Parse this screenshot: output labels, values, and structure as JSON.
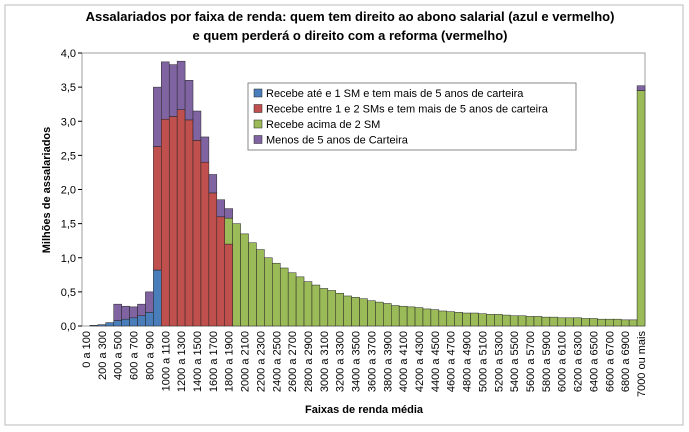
{
  "chart_data": {
    "type": "stacked-bar",
    "title": [
      "Assalariados por faixa de renda: quem tem direito ao abono salarial (azul e vermelho)",
      "e quem perderá o direito com a reforma (vermelho)"
    ],
    "y_label": "Milhões de assalariados",
    "x_label": "Faixas de renda média",
    "categories": [
      "0 a 100",
      null,
      "200 a 300",
      null,
      "400 a 500",
      null,
      "600 a 700",
      null,
      "800 a 900",
      null,
      "1000 a 1100",
      null,
      "1200 a 1300",
      null,
      "1400 a 1500",
      null,
      "1600 a 1700",
      null,
      "1800 a 1900",
      null,
      "2000 a 2100",
      null,
      "2200 a 2300",
      null,
      "2400 a 2500",
      null,
      "2600 a 2700",
      null,
      "2800 a 2900",
      null,
      "3000 a 3100",
      null,
      "3200 a 3300",
      null,
      "3400 a 3500",
      null,
      "3600 a 3700",
      null,
      "3800 a 3900",
      null,
      "4000 a 4100",
      null,
      "4200 a 4300",
      null,
      "4400 a 4500",
      null,
      "4600 a 4700",
      null,
      "4800 a 4900",
      null,
      "5000 a 5100",
      null,
      "5200 a 5300",
      null,
      "5400 a 5500",
      null,
      "5600 a 5700",
      null,
      "5800 a 5900",
      null,
      "6000 a 6100",
      null,
      "6200 a 6300",
      null,
      "6400 a 6500",
      null,
      "6600 a 6700",
      null,
      "6800 a 6900",
      null,
      "7000 ou mais"
    ],
    "series": [
      {
        "name": "Recebe até e 1 SM e tem mais de 5 anos de carteira",
        "color": "#4a7ebb",
        "values": [
          0,
          0.01,
          0.02,
          0.05,
          0.08,
          0.1,
          0.12,
          0.15,
          0.2,
          0.82,
          0,
          0,
          0,
          0,
          0,
          0,
          0,
          0,
          0,
          0,
          0,
          0,
          0,
          0,
          0,
          0,
          0,
          0,
          0,
          0,
          0,
          0,
          0,
          0,
          0,
          0,
          0,
          0,
          0,
          0,
          0,
          0,
          0,
          0,
          0,
          0,
          0,
          0,
          0,
          0,
          0,
          0,
          0,
          0,
          0,
          0,
          0,
          0,
          0,
          0,
          0,
          0,
          0,
          0,
          0,
          0,
          0,
          0,
          0,
          0,
          0
        ]
      },
      {
        "name": "Recebe entre 1 e 2 SMs e tem mais de 5 anos de carteira",
        "color": "#c0504d",
        "values": [
          0,
          0,
          0,
          0,
          0,
          0,
          0,
          0,
          0,
          1.81,
          3.03,
          3.07,
          3.17,
          3.02,
          2.72,
          2.4,
          1.95,
          1.6,
          1.2,
          0,
          0,
          0,
          0,
          0,
          0,
          0,
          0,
          0,
          0,
          0,
          0,
          0,
          0,
          0,
          0,
          0,
          0,
          0,
          0,
          0,
          0,
          0,
          0,
          0,
          0,
          0,
          0,
          0,
          0,
          0,
          0,
          0,
          0,
          0,
          0,
          0,
          0,
          0,
          0,
          0,
          0,
          0,
          0,
          0,
          0,
          0,
          0,
          0,
          0,
          0,
          0
        ]
      },
      {
        "name": "Recebe acima de 2 SM",
        "color": "#9bbb59",
        "values": [
          0,
          0,
          0,
          0,
          0,
          0,
          0,
          0,
          0,
          0,
          0,
          0,
          0,
          0,
          0,
          0,
          0,
          0,
          0.38,
          1.5,
          1.35,
          1.22,
          1.12,
          1.0,
          0.92,
          0.85,
          0.78,
          0.72,
          0.65,
          0.6,
          0.55,
          0.52,
          0.48,
          0.44,
          0.42,
          0.4,
          0.37,
          0.35,
          0.33,
          0.3,
          0.29,
          0.28,
          0.27,
          0.25,
          0.24,
          0.22,
          0.21,
          0.2,
          0.19,
          0.19,
          0.18,
          0.17,
          0.17,
          0.16,
          0.15,
          0.15,
          0.14,
          0.14,
          0.13,
          0.13,
          0.12,
          0.12,
          0.12,
          0.11,
          0.11,
          0.1,
          0.1,
          0.1,
          0.09,
          0.09,
          3.45
        ]
      },
      {
        "name": "Menos de 5 anos de Carteira",
        "color": "#8064a2",
        "values": [
          0,
          0,
          0,
          0,
          0.24,
          0.19,
          0.16,
          0.17,
          0.3,
          0.87,
          0.84,
          0.76,
          0.71,
          0.58,
          0.43,
          0.37,
          0.27,
          0.25,
          0.14,
          0,
          0,
          0,
          0,
          0,
          0,
          0,
          0,
          0,
          0,
          0,
          0,
          0,
          0,
          0,
          0,
          0,
          0,
          0,
          0,
          0,
          0,
          0,
          0,
          0,
          0,
          0,
          0,
          0,
          0,
          0,
          0,
          0,
          0,
          0,
          0,
          0,
          0,
          0,
          0,
          0,
          0,
          0,
          0,
          0,
          0,
          0,
          0,
          0,
          0,
          0,
          0.07
        ]
      }
    ],
    "ylim": [
      0,
      4
    ],
    "yticks": [
      {
        "value": 0,
        "label": "0,0"
      },
      {
        "value": 0.5,
        "label": "0,5"
      },
      {
        "value": 1,
        "label": "1,0"
      },
      {
        "value": 1.5,
        "label": "1,5"
      },
      {
        "value": 2,
        "label": "2,0"
      },
      {
        "value": 2.5,
        "label": "2,5"
      },
      {
        "value": 3,
        "label": "3,0"
      },
      {
        "value": 3.5,
        "label": "3,5"
      },
      {
        "value": 4,
        "label": "4,0"
      }
    ],
    "grid": false,
    "legend": "top-right"
  }
}
